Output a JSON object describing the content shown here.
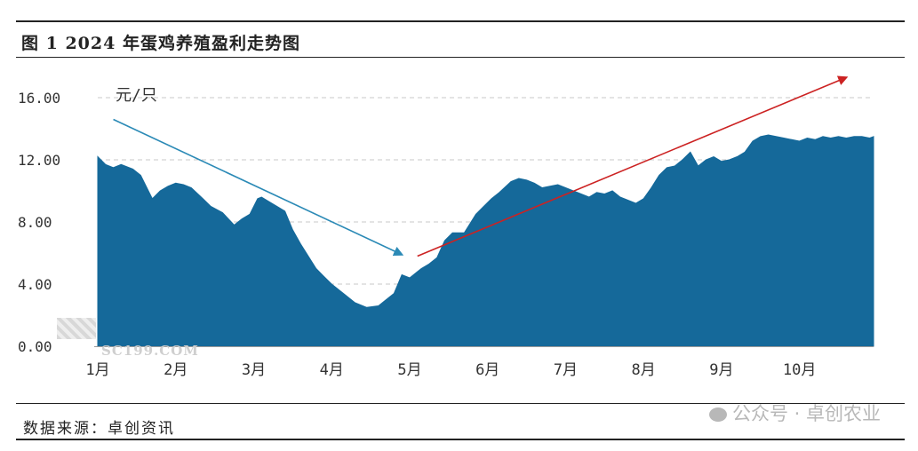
{
  "title": "图 1 2024 年蛋鸡养殖盈利走势图",
  "source": "数据来源：卓创资讯",
  "watermark_site": "SC199.COM",
  "watermark_wechat": "公众号 · 卓创农业",
  "colors": {
    "area": "#15699a",
    "arrow_down": "#2b8ab6",
    "arrow_up": "#cc2222"
  },
  "chart_data": {
    "type": "area",
    "unit_label": "元/只",
    "ylim": [
      0,
      16
    ],
    "yticks": [
      "0.00",
      "4.00",
      "8.00",
      "12.00",
      "16.00"
    ],
    "xticks": [
      "1月",
      "2月",
      "3月",
      "4月",
      "5月",
      "6月",
      "7月",
      "8月",
      "9月",
      "10月"
    ],
    "grid": "horizontal dashed",
    "x": [
      1.0,
      1.1,
      1.2,
      1.3,
      1.45,
      1.55,
      1.7,
      1.8,
      1.9,
      2.0,
      2.1,
      2.2,
      2.35,
      2.45,
      2.6,
      2.75,
      2.85,
      2.95,
      3.05,
      3.1,
      3.2,
      3.3,
      3.4,
      3.5,
      3.6,
      3.7,
      3.8,
      3.9,
      4.0,
      4.15,
      4.3,
      4.45,
      4.6,
      4.7,
      4.8,
      4.9,
      5.0,
      5.1,
      5.15,
      5.25,
      5.35,
      5.45,
      5.55,
      5.7,
      5.85,
      5.95,
      6.05,
      6.15,
      6.3,
      6.4,
      6.5,
      6.6,
      6.7,
      6.8,
      6.9,
      7.0,
      7.1,
      7.2,
      7.3,
      7.4,
      7.5,
      7.6,
      7.7,
      7.8,
      7.9,
      8.0,
      8.1,
      8.2,
      8.3,
      8.4,
      8.5,
      8.6,
      8.7,
      8.8,
      8.9,
      9.0,
      9.1,
      9.2,
      9.3,
      9.4,
      9.5,
      9.6,
      9.7,
      9.8,
      9.9,
      10.0,
      10.1,
      10.2,
      10.3,
      10.4,
      10.5,
      10.6,
      10.7,
      10.8,
      10.9,
      10.95
    ],
    "values": [
      12.2,
      11.7,
      11.5,
      11.7,
      11.4,
      11.0,
      9.5,
      10.0,
      10.3,
      10.5,
      10.4,
      10.2,
      9.5,
      9.0,
      8.6,
      7.8,
      8.2,
      8.5,
      9.5,
      9.6,
      9.3,
      9.0,
      8.7,
      7.5,
      6.6,
      5.8,
      5.0,
      4.5,
      4.0,
      3.4,
      2.8,
      2.5,
      2.6,
      3.0,
      3.4,
      4.6,
      4.4,
      4.8,
      5.0,
      5.3,
      5.7,
      6.8,
      7.3,
      7.3,
      8.5,
      9.0,
      9.5,
      9.9,
      10.6,
      10.8,
      10.7,
      10.5,
      10.2,
      10.3,
      10.4,
      10.2,
      10.0,
      9.8,
      9.6,
      9.9,
      9.8,
      10.0,
      9.6,
      9.4,
      9.2,
      9.5,
      10.2,
      11.0,
      11.5,
      11.6,
      12.0,
      12.5,
      11.6,
      12.0,
      12.2,
      11.9,
      12.0,
      12.2,
      12.5,
      13.2,
      13.5,
      13.6,
      13.5,
      13.4,
      13.3,
      13.2,
      13.4,
      13.3,
      13.5,
      13.4,
      13.5,
      13.4,
      13.5,
      13.5,
      13.4,
      13.5
    ],
    "annotations": [
      {
        "type": "arrow",
        "direction": "down",
        "from": [
          1.2,
          14.6
        ],
        "to": [
          4.9,
          5.9
        ]
      },
      {
        "type": "arrow",
        "direction": "up",
        "from": [
          5.1,
          5.8
        ],
        "to": [
          10.6,
          17.3
        ]
      }
    ]
  }
}
